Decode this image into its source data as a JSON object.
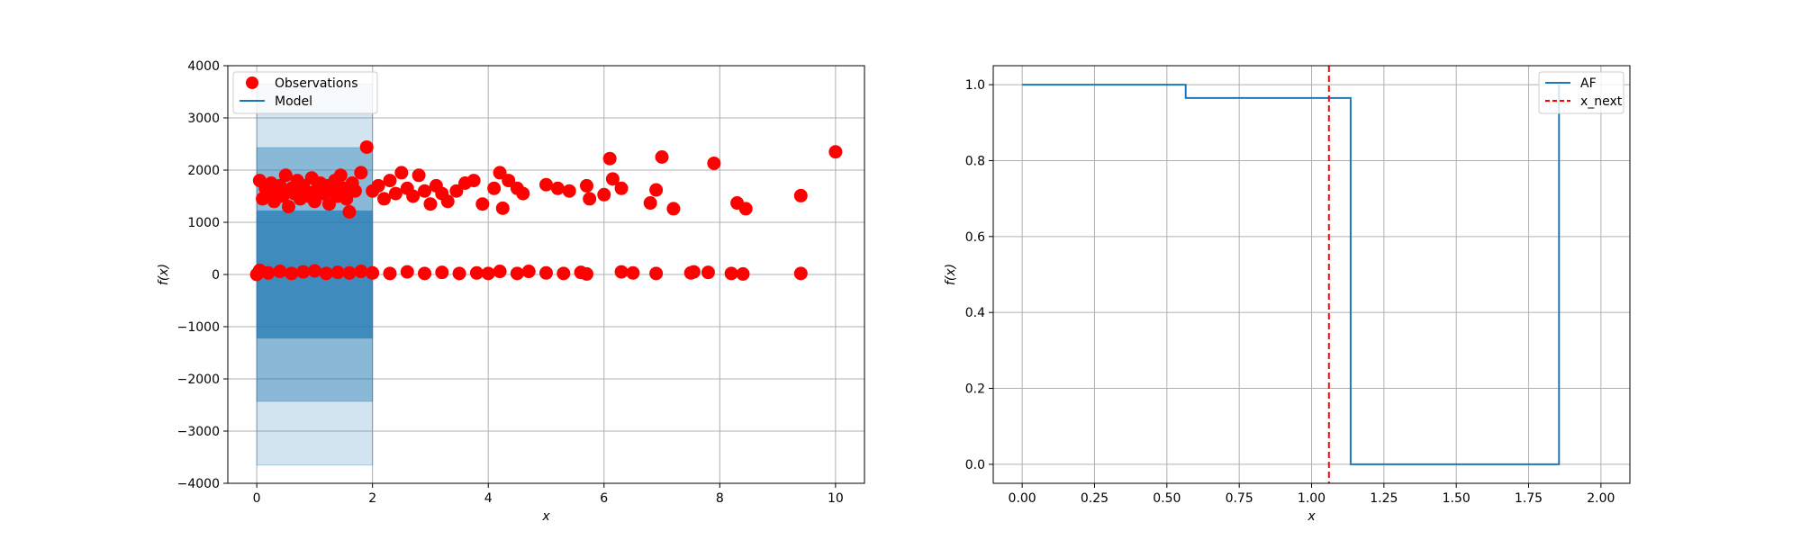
{
  "chart_data": [
    {
      "type": "scatter",
      "xlabel": "x",
      "ylabel": "f(x)",
      "xlim": [
        -0.5,
        10.5
      ],
      "ylim": [
        -4000,
        4000
      ],
      "x_ticks": [
        0,
        2,
        4,
        6,
        8,
        10
      ],
      "y_ticks": [
        -4000,
        -3000,
        -2000,
        -1000,
        0,
        1000,
        2000,
        3000,
        4000
      ],
      "grid": true,
      "legend_position": "top-left",
      "legend": [
        {
          "label": "Observations",
          "marker": "dot",
          "color": "#ff0000"
        },
        {
          "label": "Model",
          "marker": "line",
          "color": "#1f77b4"
        }
      ],
      "model": {
        "x_range": [
          0,
          2
        ],
        "mean": 0,
        "bands": [
          {
            "low": -3650,
            "high": 3650,
            "color": "#1f77b4",
            "opacity": 0.2
          },
          {
            "low": -2430,
            "high": 2430,
            "color": "#1f77b4",
            "opacity": 0.4
          },
          {
            "low": -1220,
            "high": 1220,
            "color": "#1f77b4",
            "opacity": 0.7
          }
        ]
      },
      "series": [
        {
          "name": "Observations",
          "color": "#ff0000",
          "points": [
            [
              0.05,
              1800
            ],
            [
              0.1,
              1450
            ],
            [
              0.15,
              1650
            ],
            [
              0.2,
              1550
            ],
            [
              0.25,
              1750
            ],
            [
              0.3,
              1400
            ],
            [
              0.35,
              1600
            ],
            [
              0.4,
              1700
            ],
            [
              0.45,
              1500
            ],
            [
              0.5,
              1900
            ],
            [
              0.55,
              1300
            ],
            [
              0.6,
              1650
            ],
            [
              0.65,
              1550
            ],
            [
              0.7,
              1800
            ],
            [
              0.75,
              1450
            ],
            [
              0.8,
              1700
            ],
            [
              0.85,
              1600
            ],
            [
              0.9,
              1500
            ],
            [
              0.95,
              1850
            ],
            [
              1.0,
              1400
            ],
            [
              1.05,
              1650
            ],
            [
              1.1,
              1750
            ],
            [
              1.15,
              1550
            ],
            [
              1.2,
              1700
            ],
            [
              1.25,
              1350
            ],
            [
              1.3,
              1600
            ],
            [
              1.35,
              1800
            ],
            [
              1.4,
              1500
            ],
            [
              1.45,
              1900
            ],
            [
              1.5,
              1650
            ],
            [
              1.55,
              1450
            ],
            [
              1.6,
              1200
            ],
            [
              1.65,
              1750
            ],
            [
              1.7,
              1600
            ],
            [
              1.8,
              1950
            ],
            [
              1.9,
              2440
            ],
            [
              2.0,
              1600
            ],
            [
              2.1,
              1700
            ],
            [
              2.2,
              1450
            ],
            [
              2.3,
              1800
            ],
            [
              2.4,
              1550
            ],
            [
              2.5,
              1950
            ],
            [
              2.6,
              1650
            ],
            [
              2.7,
              1500
            ],
            [
              2.8,
              1900
            ],
            [
              2.9,
              1600
            ],
            [
              3.0,
              1350
            ],
            [
              3.1,
              1700
            ],
            [
              3.2,
              1550
            ],
            [
              3.3,
              1400
            ],
            [
              3.45,
              1600
            ],
            [
              3.6,
              1750
            ],
            [
              3.75,
              1800
            ],
            [
              3.9,
              1350
            ],
            [
              4.1,
              1650
            ],
            [
              4.2,
              1950
            ],
            [
              4.25,
              1270
            ],
            [
              4.35,
              1800
            ],
            [
              4.5,
              1650
            ],
            [
              4.6,
              1550
            ],
            [
              5.0,
              1720
            ],
            [
              5.2,
              1650
            ],
            [
              5.4,
              1600
            ],
            [
              5.7,
              1700
            ],
            [
              5.75,
              1450
            ],
            [
              6.0,
              1530
            ],
            [
              6.1,
              2220
            ],
            [
              6.15,
              1830
            ],
            [
              6.3,
              1650
            ],
            [
              6.8,
              1370
            ],
            [
              6.9,
              1620
            ],
            [
              7.0,
              2250
            ],
            [
              7.2,
              1260
            ],
            [
              7.9,
              2130
            ],
            [
              8.3,
              1370
            ],
            [
              8.45,
              1260
            ],
            [
              9.4,
              1510
            ],
            [
              10.0,
              2350
            ],
            [
              0.0,
              0
            ],
            [
              0.05,
              80
            ],
            [
              0.2,
              30
            ],
            [
              0.4,
              60
            ],
            [
              0.6,
              20
            ],
            [
              0.8,
              50
            ],
            [
              1.0,
              70
            ],
            [
              1.2,
              20
            ],
            [
              1.4,
              40
            ],
            [
              1.6,
              30
            ],
            [
              1.8,
              60
            ],
            [
              2.0,
              30
            ],
            [
              2.3,
              20
            ],
            [
              2.6,
              50
            ],
            [
              2.9,
              20
            ],
            [
              3.2,
              40
            ],
            [
              3.5,
              20
            ],
            [
              3.8,
              30
            ],
            [
              4.0,
              20
            ],
            [
              4.2,
              60
            ],
            [
              4.5,
              20
            ],
            [
              4.7,
              60
            ],
            [
              5.0,
              30
            ],
            [
              5.3,
              20
            ],
            [
              5.6,
              40
            ],
            [
              5.7,
              10
            ],
            [
              6.3,
              50
            ],
            [
              6.5,
              30
            ],
            [
              6.9,
              20
            ],
            [
              7.5,
              30
            ],
            [
              7.55,
              50
            ],
            [
              7.8,
              40
            ],
            [
              8.2,
              20
            ],
            [
              8.4,
              10
            ],
            [
              9.4,
              20
            ]
          ]
        }
      ]
    },
    {
      "type": "line",
      "xlabel": "x",
      "ylabel": "f(x)",
      "xlim": [
        -0.1,
        2.1
      ],
      "ylim": [
        -0.05,
        1.05
      ],
      "x_ticks": [
        0.0,
        0.25,
        0.5,
        0.75,
        1.0,
        1.25,
        1.5,
        1.75,
        2.0
      ],
      "x_tick_labels": [
        "0.00",
        "0.25",
        "0.50",
        "0.75",
        "1.00",
        "1.25",
        "1.50",
        "1.75",
        "2.00"
      ],
      "y_ticks": [
        0.0,
        0.2,
        0.4,
        0.6,
        0.8,
        1.0
      ],
      "y_tick_labels": [
        "0.0",
        "0.2",
        "0.4",
        "0.6",
        "0.8",
        "1.0"
      ],
      "grid": true,
      "legend_position": "top-right",
      "legend": [
        {
          "label": "AF",
          "marker": "line",
          "color": "#1f77b4"
        },
        {
          "label": "x_next",
          "marker": "dashed",
          "color": "#ff0000"
        }
      ],
      "series": [
        {
          "name": "AF",
          "color": "#1f77b4",
          "step_points": [
            [
              0.0,
              1.0
            ],
            [
              0.565,
              1.0
            ],
            [
              0.565,
              0.965
            ],
            [
              1.135,
              0.965
            ],
            [
              1.135,
              0.0
            ],
            [
              1.855,
              0.0
            ],
            [
              1.855,
              1.0
            ]
          ]
        }
      ],
      "vline": {
        "name": "x_next",
        "x": 1.06,
        "color": "#ff0000"
      }
    }
  ]
}
